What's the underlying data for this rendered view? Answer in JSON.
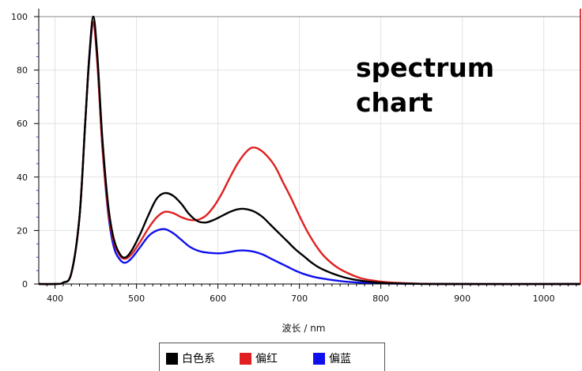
{
  "chart_data": {
    "type": "line",
    "title": "",
    "annotation": [
      "spectrum",
      "chart"
    ],
    "xlabel": "波长 / nm",
    "ylabel": "",
    "xlim": [
      380,
      1045
    ],
    "ylim": [
      0,
      100
    ],
    "xticks": [
      400,
      500,
      600,
      700,
      800,
      900,
      1000
    ],
    "yticks": [
      0,
      20,
      40,
      60,
      80,
      100
    ],
    "grid": true,
    "legend_position": "bottom",
    "series": [
      {
        "name": "白色系",
        "color": "#000000",
        "points": [
          [
            380,
            0
          ],
          [
            400,
            0
          ],
          [
            410,
            0.5
          ],
          [
            420,
            4
          ],
          [
            430,
            25
          ],
          [
            437,
            60
          ],
          [
            442,
            85
          ],
          [
            447,
            100
          ],
          [
            452,
            85
          ],
          [
            458,
            55
          ],
          [
            465,
            30
          ],
          [
            472,
            17
          ],
          [
            480,
            11
          ],
          [
            487,
            10
          ],
          [
            495,
            13
          ],
          [
            505,
            19
          ],
          [
            515,
            26
          ],
          [
            525,
            32
          ],
          [
            535,
            34
          ],
          [
            545,
            33
          ],
          [
            555,
            30
          ],
          [
            565,
            26
          ],
          [
            575,
            23.5
          ],
          [
            585,
            23
          ],
          [
            595,
            24
          ],
          [
            605,
            25.5
          ],
          [
            615,
            27
          ],
          [
            625,
            28
          ],
          [
            635,
            28
          ],
          [
            645,
            27
          ],
          [
            655,
            25
          ],
          [
            665,
            22
          ],
          [
            675,
            19
          ],
          [
            685,
            16
          ],
          [
            695,
            13
          ],
          [
            705,
            10.5
          ],
          [
            715,
            8
          ],
          [
            725,
            6
          ],
          [
            740,
            4
          ],
          [
            755,
            2.5
          ],
          [
            770,
            1.5
          ],
          [
            790,
            0.7
          ],
          [
            810,
            0.3
          ],
          [
            840,
            0.1
          ],
          [
            880,
            0
          ],
          [
            1045,
            0
          ]
        ]
      },
      {
        "name": "偏红",
        "color": "#e02020",
        "points": [
          [
            380,
            0
          ],
          [
            400,
            0
          ],
          [
            410,
            0.5
          ],
          [
            420,
            4
          ],
          [
            430,
            25
          ],
          [
            437,
            60
          ],
          [
            442,
            85
          ],
          [
            447,
            98
          ],
          [
            452,
            82
          ],
          [
            458,
            52
          ],
          [
            465,
            28
          ],
          [
            472,
            16
          ],
          [
            480,
            10.5
          ],
          [
            487,
            9.5
          ],
          [
            495,
            11.5
          ],
          [
            505,
            16
          ],
          [
            515,
            21
          ],
          [
            525,
            25
          ],
          [
            535,
            27
          ],
          [
            545,
            26.5
          ],
          [
            555,
            25
          ],
          [
            565,
            24
          ],
          [
            575,
            24
          ],
          [
            585,
            25.5
          ],
          [
            595,
            29
          ],
          [
            605,
            34
          ],
          [
            615,
            40
          ],
          [
            625,
            45.5
          ],
          [
            635,
            49.5
          ],
          [
            642,
            51
          ],
          [
            650,
            50.5
          ],
          [
            660,
            48
          ],
          [
            670,
            44
          ],
          [
            680,
            38
          ],
          [
            690,
            32
          ],
          [
            700,
            25.5
          ],
          [
            710,
            19.5
          ],
          [
            720,
            14.5
          ],
          [
            730,
            10.5
          ],
          [
            745,
            6.5
          ],
          [
            760,
            4
          ],
          [
            775,
            2.2
          ],
          [
            790,
            1.3
          ],
          [
            810,
            0.6
          ],
          [
            840,
            0.2
          ],
          [
            880,
            0
          ],
          [
            1045,
            0
          ]
        ]
      },
      {
        "name": "偏蓝",
        "color": "#1010ee",
        "points": [
          [
            380,
            0
          ],
          [
            400,
            0
          ],
          [
            410,
            0.5
          ],
          [
            420,
            4
          ],
          [
            430,
            25
          ],
          [
            437,
            60
          ],
          [
            442,
            84
          ],
          [
            447,
            98
          ],
          [
            452,
            83
          ],
          [
            458,
            52
          ],
          [
            465,
            27
          ],
          [
            472,
            14
          ],
          [
            480,
            9
          ],
          [
            487,
            8
          ],
          [
            495,
            10
          ],
          [
            505,
            14
          ],
          [
            515,
            18
          ],
          [
            525,
            20
          ],
          [
            535,
            20.5
          ],
          [
            545,
            19
          ],
          [
            555,
            16.5
          ],
          [
            565,
            14
          ],
          [
            575,
            12.5
          ],
          [
            585,
            11.8
          ],
          [
            595,
            11.5
          ],
          [
            605,
            11.5
          ],
          [
            615,
            12
          ],
          [
            625,
            12.5
          ],
          [
            635,
            12.5
          ],
          [
            645,
            12
          ],
          [
            655,
            11
          ],
          [
            665,
            9.5
          ],
          [
            675,
            8
          ],
          [
            685,
            6.5
          ],
          [
            695,
            5
          ],
          [
            705,
            3.8
          ],
          [
            720,
            2.5
          ],
          [
            740,
            1.5
          ],
          [
            760,
            0.8
          ],
          [
            790,
            0.3
          ],
          [
            830,
            0.1
          ],
          [
            880,
            0
          ],
          [
            1045,
            0
          ]
        ]
      }
    ]
  }
}
